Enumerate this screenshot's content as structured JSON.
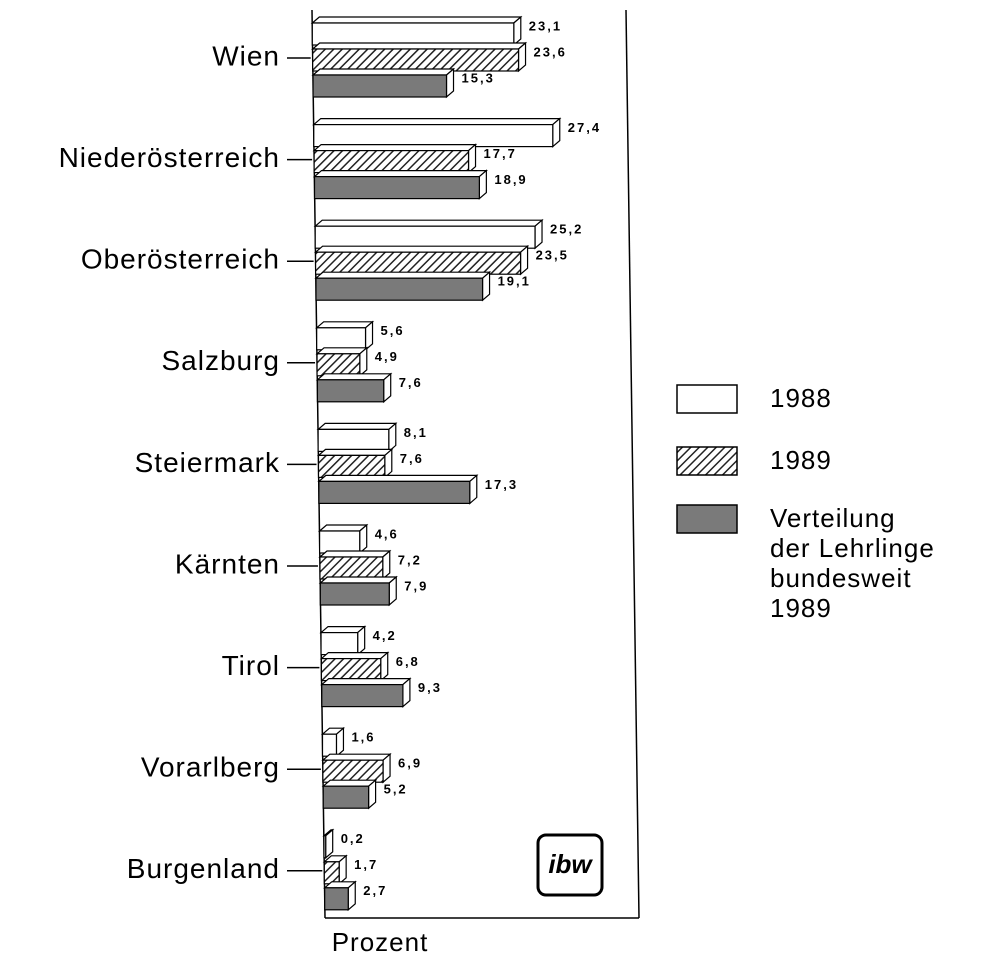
{
  "chart_data": {
    "type": "bar",
    "orientation": "horizontal",
    "categories": [
      "Wien",
      "Niederösterreich",
      "Oberösterreich",
      "Salzburg",
      "Steiermark",
      "Kärnten",
      "Tirol",
      "Vorarlberg",
      "Burgenland"
    ],
    "series": [
      {
        "name": "1988",
        "color": "#ffffff",
        "pattern": "solid",
        "values": [
          23.1,
          27.4,
          25.2,
          5.6,
          8.1,
          4.6,
          4.2,
          1.6,
          0.2
        ],
        "value_labels": [
          "23,1",
          "27,4",
          "25,2",
          "5,6",
          "8,1",
          "4,6",
          "4,2",
          "1,6",
          "0,2"
        ]
      },
      {
        "name": "1989",
        "color": "#555555",
        "pattern": "hatch",
        "values": [
          23.6,
          17.7,
          23.5,
          4.9,
          7.6,
          7.2,
          6.8,
          6.9,
          1.7
        ],
        "value_labels": [
          "23,6",
          "17,7",
          "23,5",
          "4,9",
          "7,6",
          "7,2",
          "6,8",
          "6,9",
          "1,7"
        ]
      },
      {
        "name": "Verteilung der Lehrlinge bundesweit 1989",
        "color": "#7a7a7a",
        "pattern": "solid",
        "values": [
          15.3,
          18.9,
          19.1,
          7.6,
          17.3,
          7.9,
          9.3,
          5.2,
          2.7
        ],
        "value_labels": [
          "15,3",
          "18,9",
          "19,1",
          "7,6",
          "17,3",
          "7,9",
          "9,3",
          "5,2",
          "2,7"
        ]
      }
    ],
    "xlabel": "Prozent",
    "xlim": [
      0,
      36
    ],
    "logo": "ibw",
    "legend": "right"
  }
}
